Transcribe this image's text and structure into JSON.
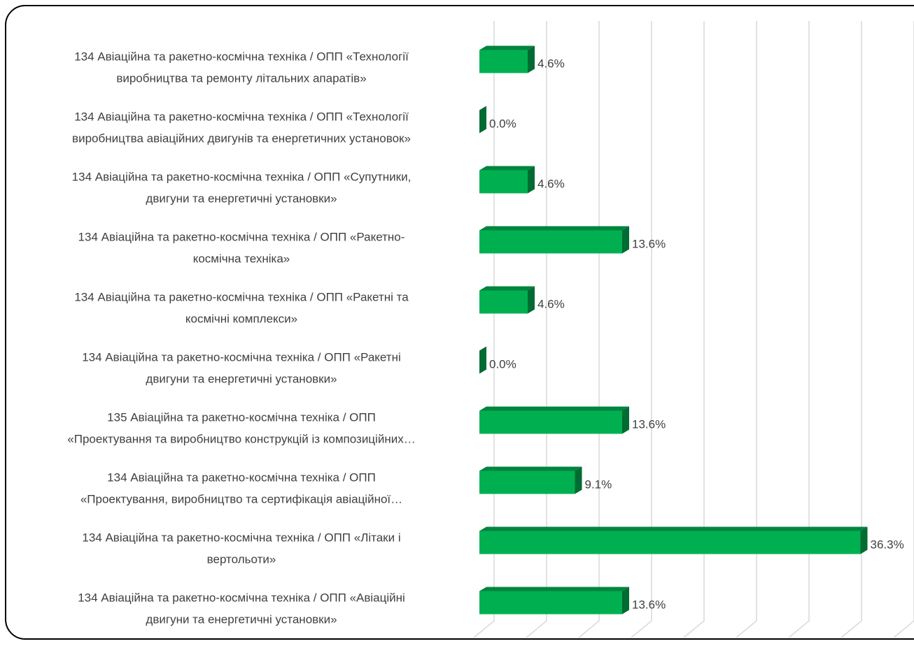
{
  "chart_data": {
    "type": "bar3d-horizontal",
    "categories": [
      [
        "134 Авіаційна та ракетно-космічна техніка / ОПП «Технології",
        "виробництва та ремонту літальних апаратів»"
      ],
      [
        "134 Авіаційна та ракетно-космічна техніка / ОПП «Технології",
        "виробництва авіаційних двигунів та енергетичних установок»"
      ],
      [
        "134 Авіаційна та ракетно-космічна техніка / ОПП «Супутники,",
        "двигуни та енергетичні установки»"
      ],
      [
        "134 Авіаційна та ракетно-космічна техніка / ОПП «Ракетно-",
        "космічна техніка»"
      ],
      [
        "134 Авіаційна та ракетно-космічна техніка / ОПП «Ракетні та",
        "космічні комплекси»"
      ],
      [
        "134 Авіаційна та ракетно-космічна техніка / ОПП «Ракетні",
        "двигуни та енергетичні установки»"
      ],
      [
        "135 Авіаційна та ракетно-космічна техніка / ОПП",
        "«Проектування та виробництво конструкцій із композиційних…"
      ],
      [
        "134 Авіаційна та ракетно-космічна техніка / ОПП",
        "«Проектування, виробництво та сертифікація авіаційної…"
      ],
      [
        "134 Авіаційна та ракетно-космічна техніка / ОПП «Літаки і",
        "вертольоти»"
      ],
      [
        "134 Авіаційна та ракетно-космічна техніка / ОПП «Авіаційні",
        "двигуни та енергетичні установки»"
      ]
    ],
    "values": [
      4.6,
      0,
      4.6,
      13.6,
      4.6,
      0,
      13.6,
      9.1,
      36.3,
      13.6
    ],
    "value_labels": [
      "4.6%",
      "0.0%",
      "4.6%",
      "13.6%",
      "4.6%",
      "0.0%",
      "13.6%",
      "9.1%",
      "36.3%",
      "13.6%"
    ],
    "color": "#00b050",
    "xlim": [
      0,
      40
    ],
    "xticks": [
      0,
      5,
      10,
      15,
      20,
      25,
      30,
      35,
      40
    ],
    "grid": true
  }
}
